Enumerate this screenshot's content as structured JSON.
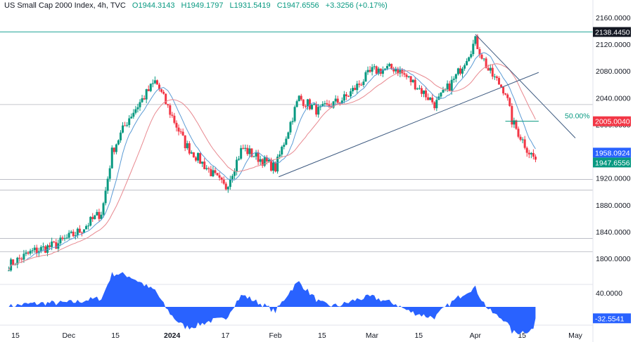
{
  "header": {
    "title": "US Small Cap 2000 Index, 4h, TVC",
    "open": "O1944.3143",
    "high": "H1949.1797",
    "low": "L1931.5419",
    "close": "C1947.6556",
    "change": "+3.3256 (+0.17%)"
  },
  "colors": {
    "up": "#089981",
    "down": "#f23645",
    "fast_ma": "#5b9bd5",
    "slow_ma": "#e8888f",
    "trendline": "#3d5a80",
    "level_line": "#b2b5be",
    "osc_fill": "#2962ff",
    "resistance_line": "#26a69a"
  },
  "chart_data": [
    {
      "type": "candlestick",
      "timeframe": "4h",
      "ylim": [
        1780,
        2170
      ],
      "y_ticks": [
        "2160.0000",
        "2120.0000",
        "2080.0000",
        "2040.0000",
        "2000.0000",
        "1920.0000",
        "1880.0000",
        "1840.0000",
        "1800.0000"
      ],
      "x_ticks": [
        "15",
        "Dec",
        "15",
        "2024",
        "17",
        "Feb",
        "15",
        "Mar",
        "15",
        "Apr",
        "15",
        "May"
      ],
      "anchor_points": {
        "x": [
          "Nov 13",
          "Nov 20",
          "Nov 27",
          "Dec 4",
          "Dec 11",
          "Dec 14",
          "Dec 19",
          "Dec 27",
          "Jan 5",
          "Jan 17",
          "Jan 22",
          "Feb 1",
          "Feb 8",
          "Feb 14",
          "Feb 22",
          "Mar 1",
          "Mar 8",
          "Mar 14",
          "Mar 20",
          "Mar 26",
          "Apr 1",
          "Apr 5",
          "Apr 10",
          "Apr 12",
          "Apr 17",
          "Apr 19"
        ],
        "close": [
          1790,
          1810,
          1820,
          1840,
          1870,
          1960,
          2010,
          2065,
          1970,
          1905,
          1965,
          1935,
          2040,
          2020,
          2040,
          2080,
          2085,
          2060,
          2030,
          2070,
          2125,
          2080,
          2050,
          2005,
          1960,
          1947.66
        ]
      },
      "levels": [
        {
          "label": "2138.4450",
          "value": 2138.445,
          "kind": "resistance"
        },
        {
          "label": "2005.0040",
          "value": 2005.004,
          "kind": "price"
        },
        {
          "label": "50.00%",
          "value": 2005.004,
          "kind": "fib"
        },
        {
          "label": "",
          "value": 2030,
          "kind": "zone"
        },
        {
          "label": "",
          "value": 1918,
          "kind": "zone"
        },
        {
          "label": "",
          "value": 1902,
          "kind": "zone"
        },
        {
          "label": "",
          "value": 1830,
          "kind": "zone"
        },
        {
          "label": "",
          "value": 1810,
          "kind": "zone"
        }
      ],
      "price_tags": [
        {
          "label": "2138.4450",
          "value": 2138.445,
          "color": "#131722"
        },
        {
          "label": "2005.0040",
          "value": 2005.004,
          "color": "#f23645"
        },
        {
          "label": "1958.0924",
          "value": 1958.0924,
          "color": "#2962ff"
        },
        {
          "label": "1947.6556",
          "value": 1947.6556,
          "color": "#089981"
        }
      ],
      "trendlines": [
        {
          "from": [
            "Feb 2",
            1922
          ],
          "to": [
            "Apr 20",
            2078
          ]
        },
        {
          "from": [
            "Apr 1",
            2135
          ],
          "to": [
            "May 1",
            1980
          ]
        }
      ]
    },
    {
      "type": "area",
      "name": "oscillator",
      "y_ticks": [
        "40.0000"
      ],
      "last_value": "-32.5541"
    }
  ]
}
